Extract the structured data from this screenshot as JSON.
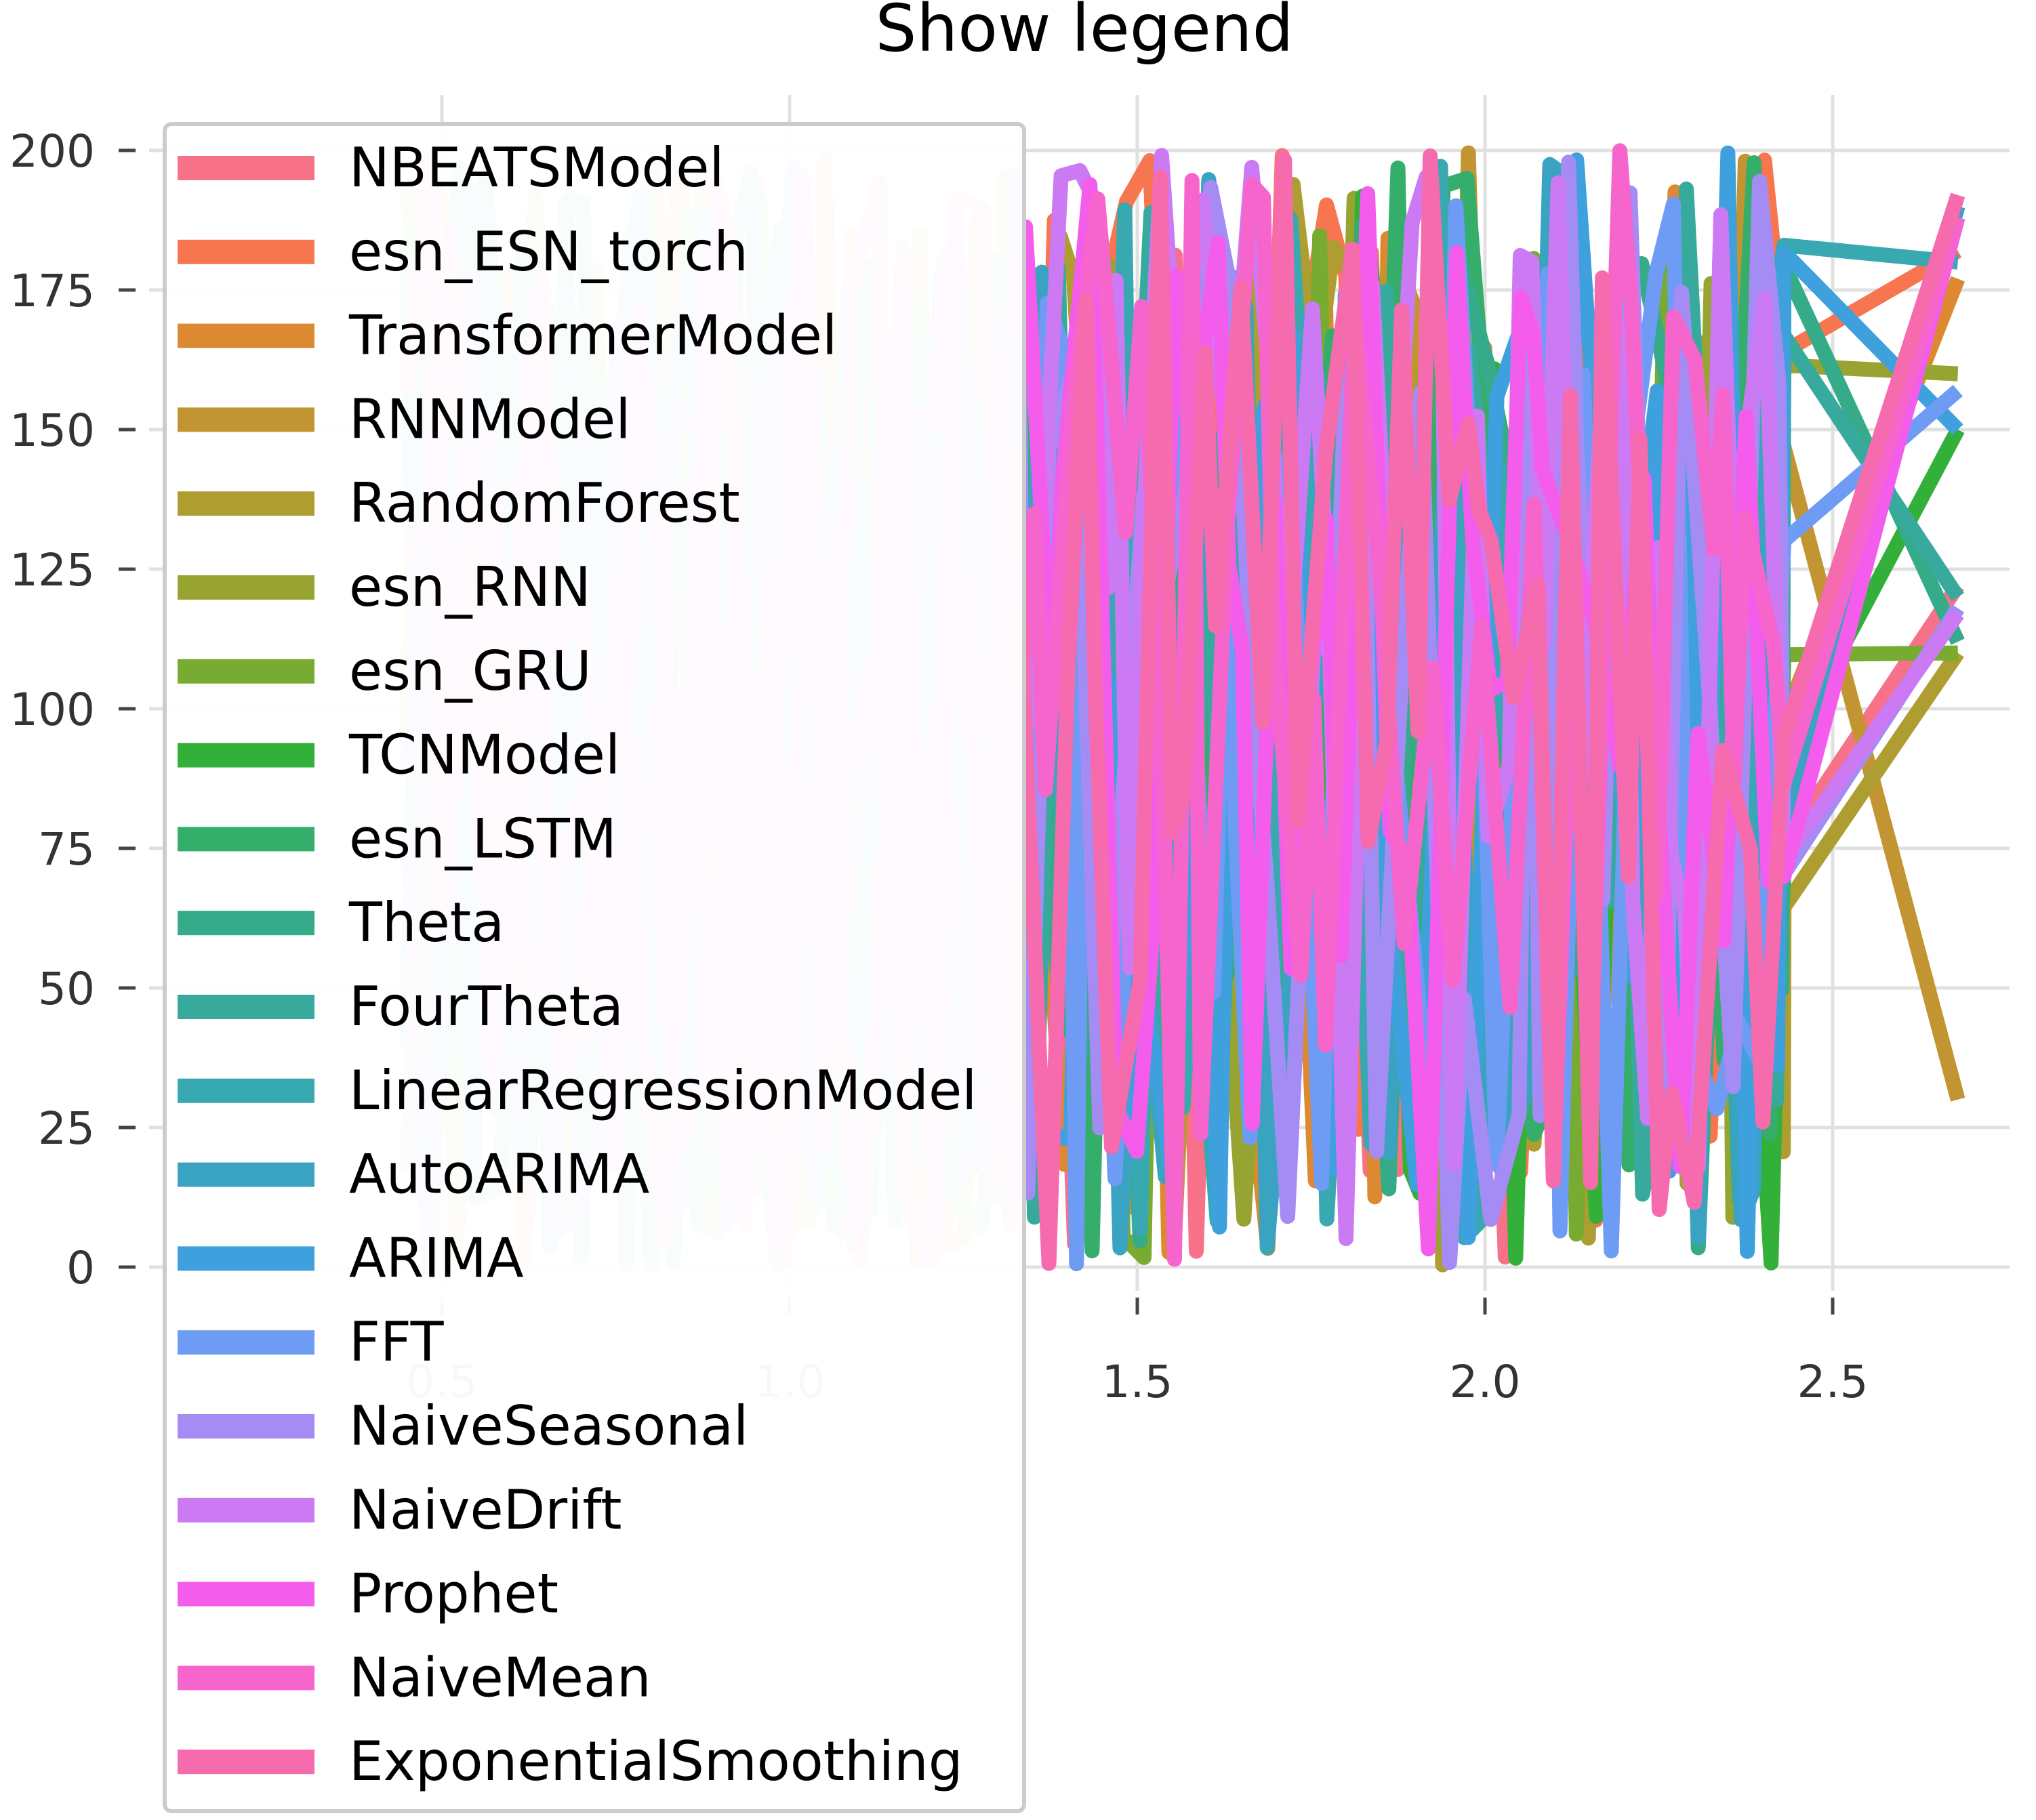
{
  "chart_data": {
    "type": "line",
    "title": "Show legend",
    "xlabel": "",
    "ylabel": "",
    "xlim": [
      0.45,
      2.75
    ],
    "ylim": [
      -5,
      210
    ],
    "x_ticks": [
      0.5,
      1.0,
      1.5,
      2.0,
      2.5
    ],
    "x_tick_labels": [
      "0.5",
      "1.0",
      "1.5",
      "2.0",
      "2.5"
    ],
    "y_ticks": [
      0,
      25,
      50,
      75,
      100,
      125,
      150,
      175,
      200
    ],
    "y_tick_labels": [
      "0",
      "25",
      "50",
      "75",
      "100",
      "125",
      "150",
      "175",
      "200"
    ],
    "grid": true,
    "legend_position": "upper-left",
    "series": [
      {
        "name": "NBEATSModel",
        "color": "#f77189"
      },
      {
        "name": "esn_ESN_torch",
        "color": "#f7754f"
      },
      {
        "name": "TransformerModel",
        "color": "#dc8932"
      },
      {
        "name": "RNNModel",
        "color": "#c39532"
      },
      {
        "name": "RandomForest",
        "color": "#ae9d31"
      },
      {
        "name": "esn_RNN",
        "color": "#97a431"
      },
      {
        "name": "esn_GRU",
        "color": "#77ab31"
      },
      {
        "name": "TCNModel",
        "color": "#33b039"
      },
      {
        "name": "esn_LSTM",
        "color": "#35ad6b"
      },
      {
        "name": "Theta",
        "color": "#36ab89"
      },
      {
        "name": "FourTheta",
        "color": "#37aa9d"
      },
      {
        "name": "LinearRegressionModel",
        "color": "#38a8b1"
      },
      {
        "name": "AutoARIMA",
        "color": "#3ba3c2"
      },
      {
        "name": "ARIMA",
        "color": "#3ea0dc"
      },
      {
        "name": "FFT",
        "color": "#6e9bf4"
      },
      {
        "name": "NaiveSeasonal",
        "color": "#a48cf4"
      },
      {
        "name": "NaiveDrift",
        "color": "#cc7af4"
      },
      {
        "name": "Prophet",
        "color": "#f45deb"
      },
      {
        "name": "NaiveMean",
        "color": "#f565cc"
      },
      {
        "name": "ExponentialSmoothing",
        "color": "#f66bad"
      }
    ]
  }
}
